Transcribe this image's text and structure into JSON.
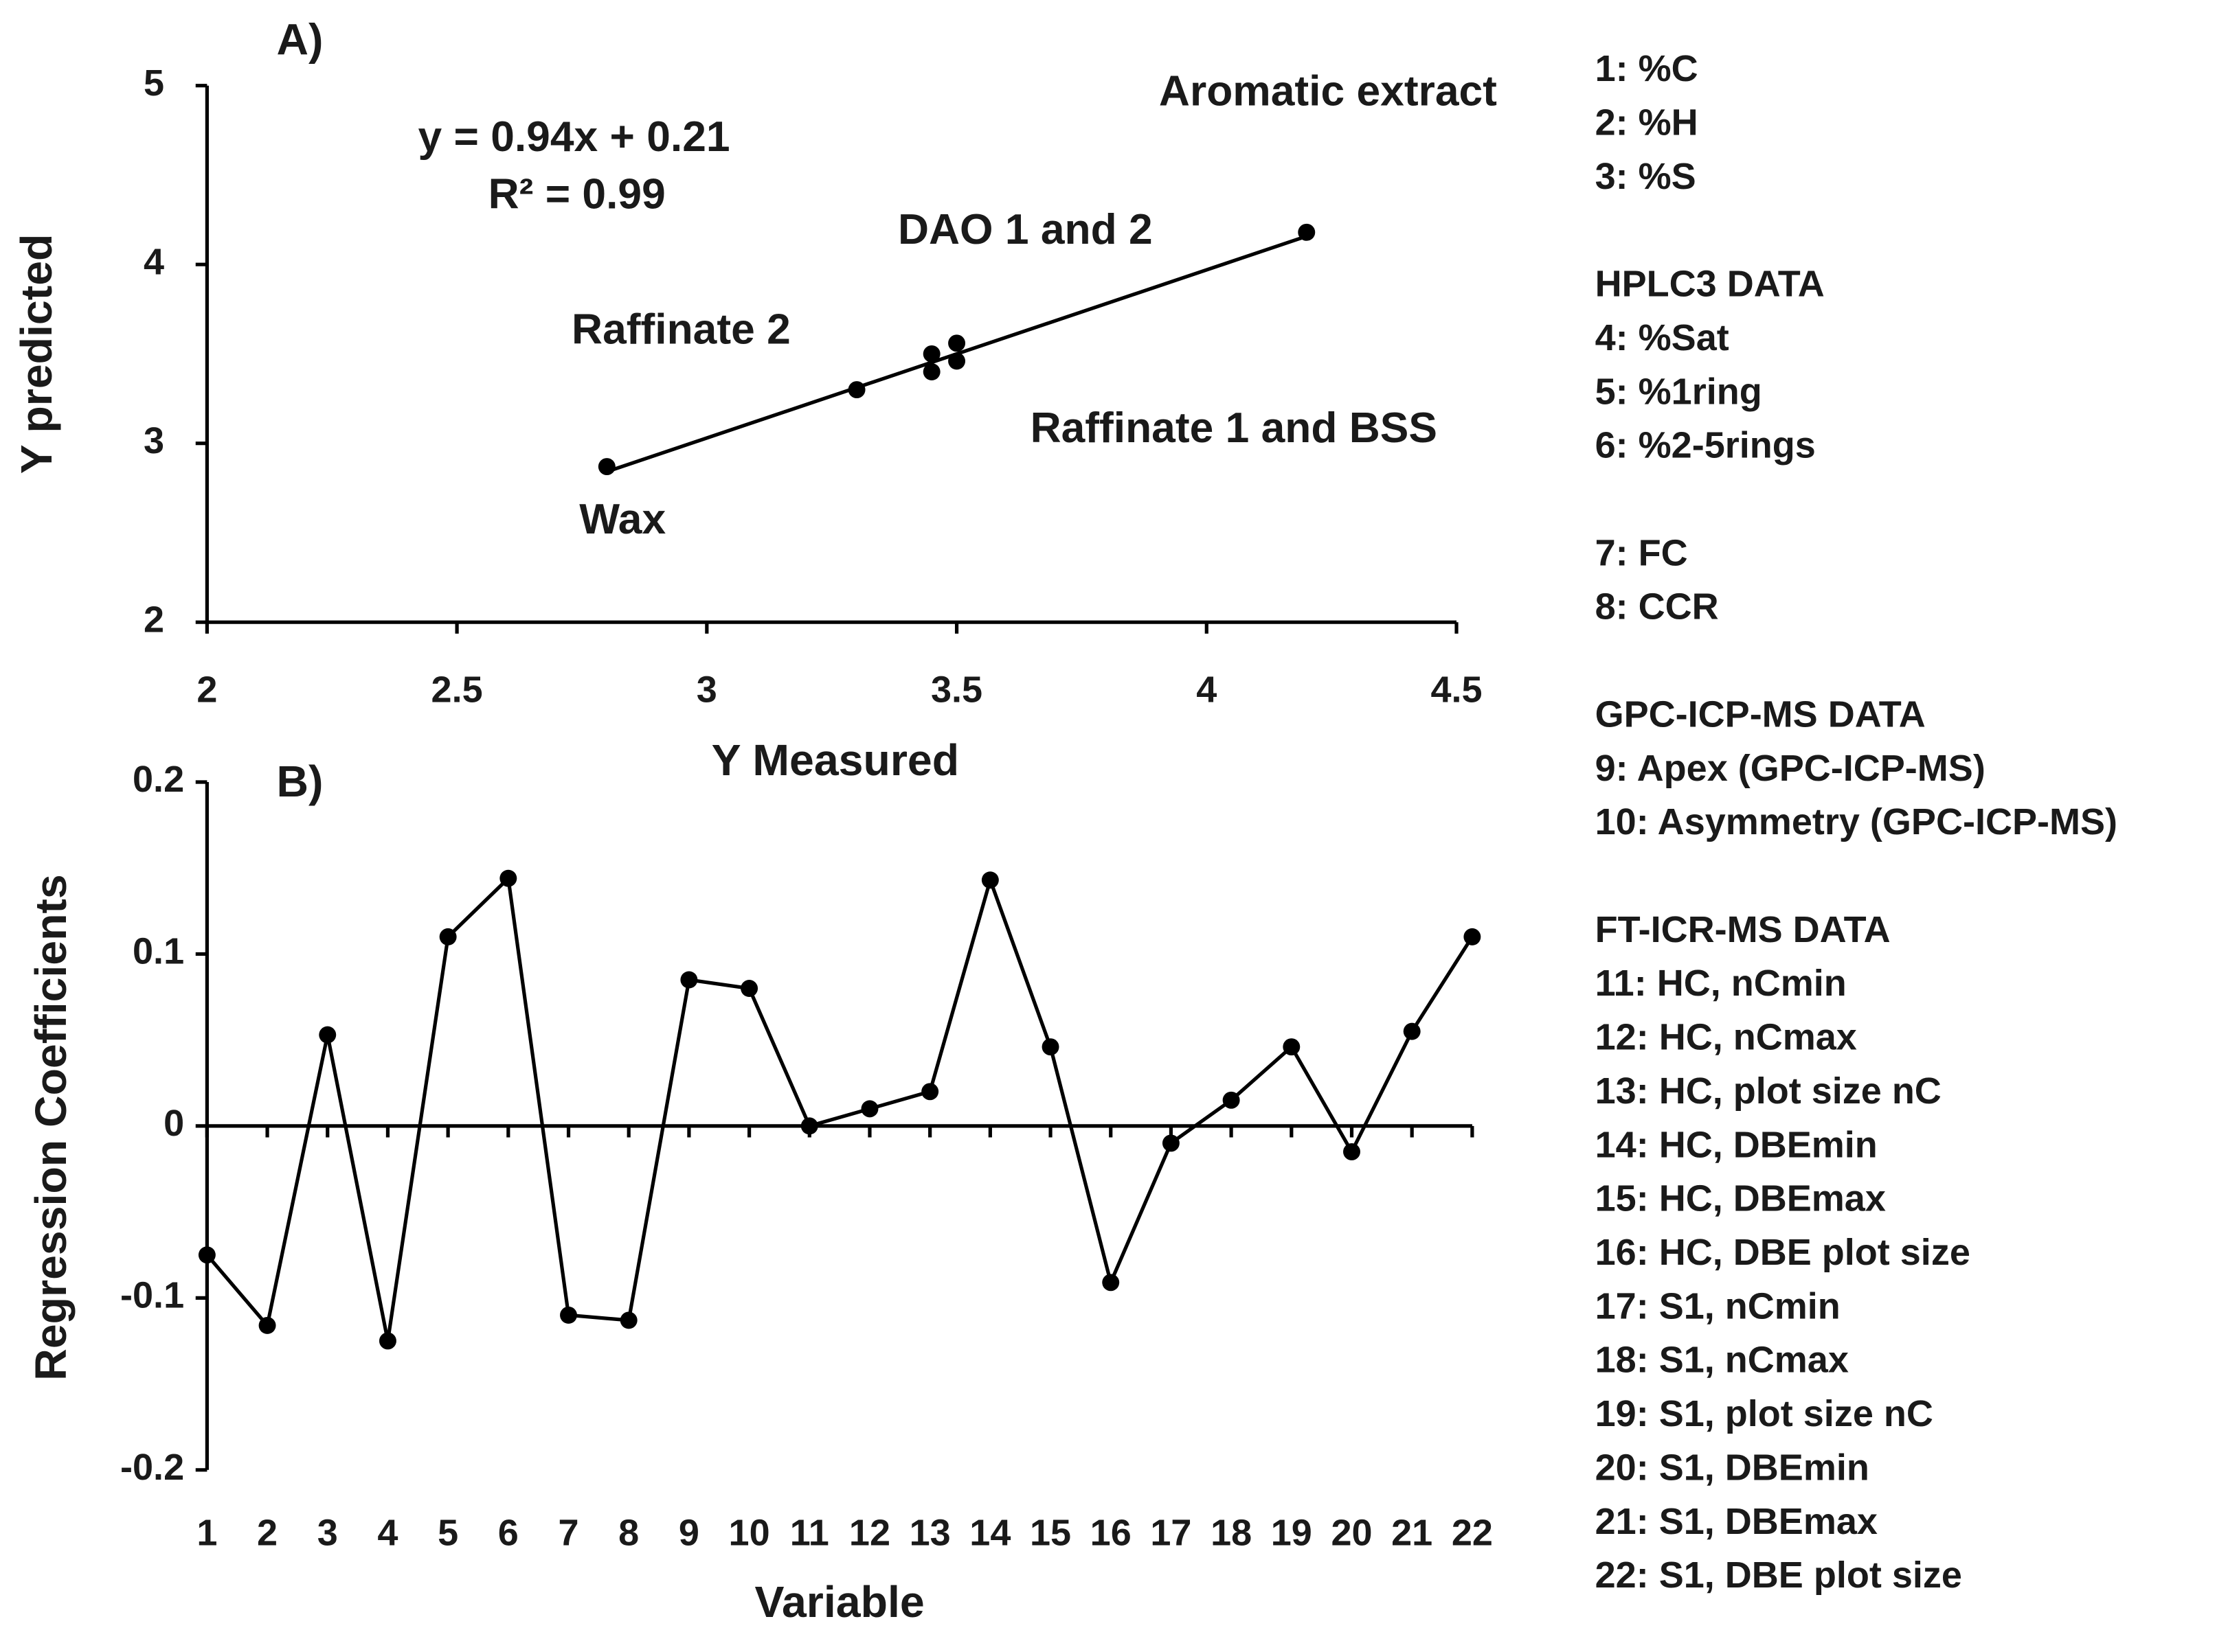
{
  "chart_data": [
    {
      "type": "scatter",
      "panel_label": "A)",
      "x_label": "Y Measured",
      "y_label": "Y predicted",
      "xlim": [
        2,
        4.5
      ],
      "xticks": [
        2,
        2.5,
        3,
        3.5,
        4,
        4.5
      ],
      "ylim": [
        2,
        5
      ],
      "yticks": [
        2,
        3,
        4,
        5
      ],
      "color": "#000000",
      "series": [
        {
          "x": [
            2.8,
            3.3,
            3.45,
            3.45,
            3.5,
            3.5,
            4.2
          ],
          "values": [
            2.87,
            3.3,
            3.5,
            3.4,
            3.56,
            3.46,
            4.18
          ]
        },
        {
          "x": [
            2.8,
            4.2
          ],
          "values": [
            2.842,
            4.158
          ]
        }
      ],
      "annotations": [
        "Aromatic extract",
        "y = 0.94x + 0.21",
        "R² = 0.99",
        "DAO 1 and 2",
        "Raffinate 2",
        "Raffinate 1 and BSS",
        "Wax"
      ]
    },
    {
      "type": "line",
      "panel_label": "B)",
      "x_label": "Variable",
      "y_label": "Regression Coefficients",
      "categories": [
        "1",
        "2",
        "3",
        "4",
        "5",
        "6",
        "7",
        "8",
        "9",
        "10",
        "11",
        "12",
        "13",
        "14",
        "15",
        "16",
        "17",
        "18",
        "19",
        "20",
        "21",
        "22"
      ],
      "values": [
        -0.075,
        -0.116,
        0.053,
        -0.125,
        0.11,
        0.144,
        -0.11,
        -0.113,
        0.085,
        0.08,
        0,
        0.01,
        0.02,
        0.143,
        0.046,
        -0.091,
        -0.01,
        0.015,
        0.046,
        -0.015,
        0.055,
        0.11
      ],
      "ylim": [
        -0.2,
        0.2
      ],
      "yticks": [
        -0.2,
        -0.1,
        0,
        0.1,
        0.2
      ],
      "color": "#000000"
    }
  ],
  "key": [
    {
      "items": [
        "1: %C",
        "2: %H",
        "3: %S"
      ]
    },
    {
      "heading": "HPLC3 DATA",
      "items": [
        "4: %Sat",
        "5: %1ring",
        "6: %2-5rings"
      ]
    },
    {
      "items": [
        "7: FC",
        "8: CCR"
      ]
    },
    {
      "heading": "GPC-ICP-MS DATA",
      "items": [
        "9: Apex (GPC-ICP-MS)",
        "10: Asymmetry  (GPC-ICP-MS)"
      ]
    },
    {
      "heading": "FT-ICR-MS DATA",
      "items": [
        "11: HC, nCmin",
        "12: HC, nCmax",
        "13: HC, plot size nC",
        "14: HC, DBEmin",
        "15: HC, DBEmax",
        "16: HC, DBE plot size",
        "17: S1, nCmin",
        "18: S1, nCmax",
        "19: S1, plot size nC",
        "20: S1, DBEmin",
        "21: S1, DBEmax",
        "22: S1, DBE plot size"
      ]
    }
  ]
}
